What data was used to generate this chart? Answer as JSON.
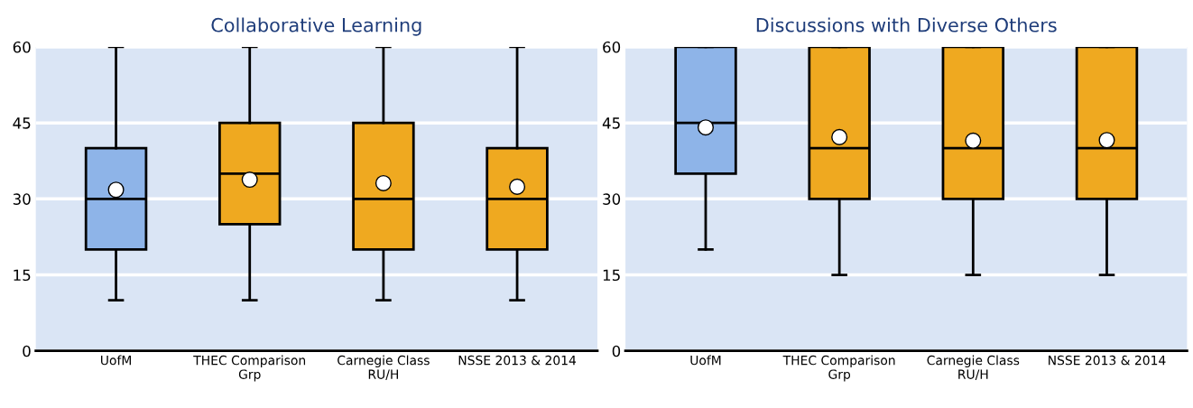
{
  "chart_data": [
    {
      "type": "box",
      "title": "Collaborative Learning",
      "categories": [
        "UofM",
        "THEC Comparison Grp",
        "Carnegie Class RU/H",
        "NSSE 2013 & 2014"
      ],
      "colors": [
        "#8eb4e8",
        "#efa920",
        "#efa920",
        "#efa920"
      ],
      "boxes": [
        {
          "low": 10,
          "q1": 20,
          "median": 30,
          "q3": 40,
          "high": 60,
          "mean": 31.8
        },
        {
          "low": 10,
          "q1": 25,
          "median": 35,
          "q3": 45,
          "high": 60,
          "mean": 33.8
        },
        {
          "low": 10,
          "q1": 20,
          "median": 30,
          "q3": 45,
          "high": 60,
          "mean": 33.1
        },
        {
          "low": 10,
          "q1": 20,
          "median": 30,
          "q3": 40,
          "high": 60,
          "mean": 32.4
        }
      ],
      "ylim": [
        0,
        60
      ],
      "yticks": [
        0,
        15,
        30,
        45,
        60
      ],
      "grid": "y",
      "legend": false
    },
    {
      "type": "box",
      "title": "Discussions with Diverse Others",
      "categories": [
        "UofM",
        "THEC Comparison Grp",
        "Carnegie Class RU/H",
        "NSSE 2013 & 2014"
      ],
      "colors": [
        "#8eb4e8",
        "#efa920",
        "#efa920",
        "#efa920"
      ],
      "boxes": [
        {
          "low": 20,
          "q1": 35,
          "median": 45,
          "q3": 60,
          "high": 60,
          "mean": 44.1
        },
        {
          "low": 15,
          "q1": 30,
          "median": 40,
          "q3": 60,
          "high": 60,
          "mean": 42.2
        },
        {
          "low": 15,
          "q1": 30,
          "median": 40,
          "q3": 60,
          "high": 60,
          "mean": 41.5
        },
        {
          "low": 15,
          "q1": 30,
          "median": 40,
          "q3": 60,
          "high": 60,
          "mean": 41.6
        }
      ],
      "ylim": [
        0,
        60
      ],
      "yticks": [
        0,
        15,
        30,
        45,
        60
      ],
      "grid": "y",
      "legend": false
    }
  ]
}
